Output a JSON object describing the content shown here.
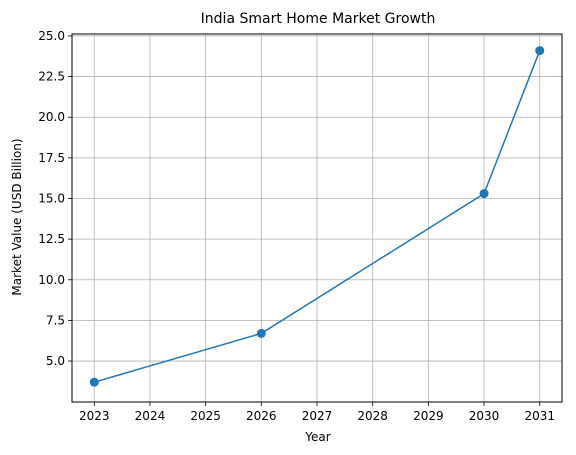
{
  "chart_data": {
    "type": "line",
    "title": "India Smart Home Market Growth",
    "xlabel": "Year",
    "ylabel": "Market Value (USD Billion)",
    "x": [
      2023,
      2026,
      2030,
      2031
    ],
    "series": [
      {
        "values": [
          3.7,
          6.7,
          15.3,
          24.1
        ]
      }
    ],
    "xticks": [
      2023,
      2024,
      2025,
      2026,
      2027,
      2028,
      2029,
      2030,
      2031
    ],
    "yticks": [
      "5.0",
      "7.5",
      "10.0",
      "12.5",
      "15.0",
      "17.5",
      "20.0",
      "22.5",
      "25.0"
    ],
    "xlim": [
      2022.6,
      2031.4
    ],
    "ylim": [
      2.48,
      25.12
    ],
    "grid": true,
    "line_color": "#1f77b4"
  }
}
